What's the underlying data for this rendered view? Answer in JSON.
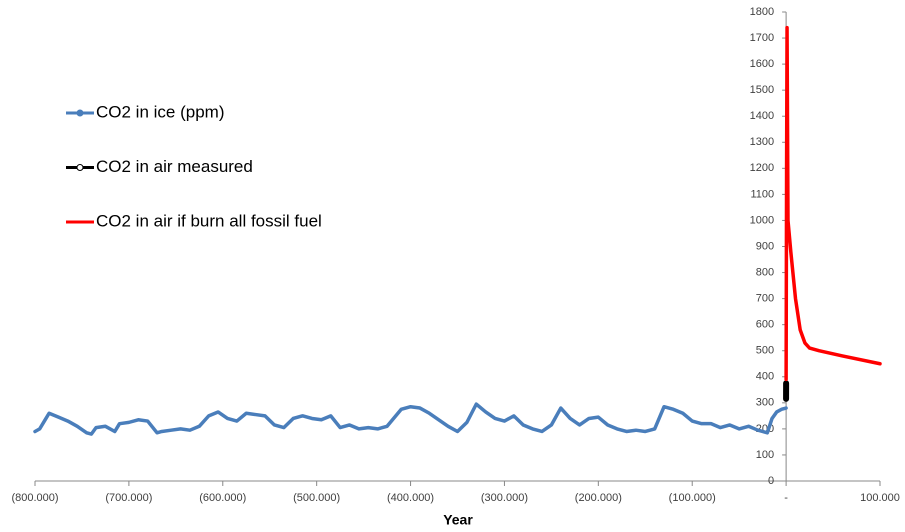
{
  "chart_data": {
    "type": "line",
    "x_label": "Year",
    "xlim": [
      -800000,
      100000
    ],
    "xticks": [
      {
        "value": -800000,
        "label": "(800.000)"
      },
      {
        "value": -700000,
        "label": "(700.000)"
      },
      {
        "value": -600000,
        "label": "(600.000)"
      },
      {
        "value": -500000,
        "label": "(500.000)"
      },
      {
        "value": -400000,
        "label": "(400.000)"
      },
      {
        "value": -300000,
        "label": "(300.000)"
      },
      {
        "value": -200000,
        "label": "(200.000)"
      },
      {
        "value": -100000,
        "label": "(100.000)"
      },
      {
        "value": 0,
        "label": "-"
      },
      {
        "value": 100000,
        "label": "100.000"
      }
    ],
    "ylim": [
      0,
      1800
    ],
    "yticks": [
      0,
      100,
      200,
      300,
      400,
      500,
      600,
      700,
      800,
      900,
      1000,
      1100,
      1200,
      1300,
      1400,
      1500,
      1600,
      1700,
      1800
    ],
    "grid": false,
    "legend": "upper left",
    "series": [
      {
        "name": "CO2 in ice (ppm)",
        "color": "#4a7ebb",
        "x": [
          -800000,
          -795000,
          -790000,
          -785000,
          -775000,
          -765000,
          -755000,
          -745000,
          -740000,
          -735000,
          -725000,
          -715000,
          -710000,
          -700000,
          -690000,
          -680000,
          -670000,
          -665000,
          -655000,
          -645000,
          -635000,
          -625000,
          -615000,
          -605000,
          -595000,
          -585000,
          -575000,
          -565000,
          -555000,
          -545000,
          -535000,
          -525000,
          -515000,
          -505000,
          -495000,
          -485000,
          -475000,
          -465000,
          -455000,
          -445000,
          -435000,
          -425000,
          -410000,
          -400000,
          -390000,
          -380000,
          -370000,
          -360000,
          -350000,
          -340000,
          -330000,
          -320000,
          -310000,
          -300000,
          -290000,
          -280000,
          -270000,
          -260000,
          -250000,
          -240000,
          -230000,
          -220000,
          -210000,
          -200000,
          -190000,
          -180000,
          -170000,
          -160000,
          -150000,
          -140000,
          -130000,
          -120000,
          -110000,
          -100000,
          -90000,
          -80000,
          -70000,
          -60000,
          -50000,
          -40000,
          -30000,
          -20000,
          -15000,
          -10000,
          -5000,
          0
        ],
        "values": [
          190,
          200,
          230,
          260,
          245,
          230,
          210,
          185,
          180,
          205,
          210,
          190,
          220,
          225,
          235,
          230,
          185,
          190,
          195,
          200,
          195,
          210,
          250,
          265,
          240,
          230,
          260,
          255,
          250,
          215,
          205,
          240,
          250,
          240,
          235,
          250,
          205,
          215,
          200,
          205,
          200,
          210,
          275,
          285,
          280,
          260,
          235,
          210,
          190,
          225,
          295,
          265,
          240,
          230,
          250,
          215,
          200,
          190,
          215,
          280,
          240,
          215,
          240,
          245,
          215,
          200,
          190,
          195,
          190,
          200,
          285,
          275,
          260,
          230,
          220,
          220,
          205,
          215,
          200,
          210,
          195,
          185,
          240,
          265,
          275,
          280
        ]
      },
      {
        "name": "CO2 in air measured",
        "color": "#000000",
        "x": [
          -42,
          -32,
          -22,
          -12,
          -2
        ],
        "values": [
          315,
          325,
          338,
          355,
          375
        ]
      },
      {
        "name": "CO2 in air if burn all fossil fuel",
        "color": "#ff0000",
        "x": [
          0,
          500,
          1000,
          2000,
          5000,
          10000,
          15000,
          20000,
          25000,
          35000,
          60000,
          100000
        ],
        "values": [
          390,
          1200,
          1740,
          1000,
          880,
          700,
          580,
          530,
          510,
          500,
          480,
          450
        ]
      }
    ]
  }
}
